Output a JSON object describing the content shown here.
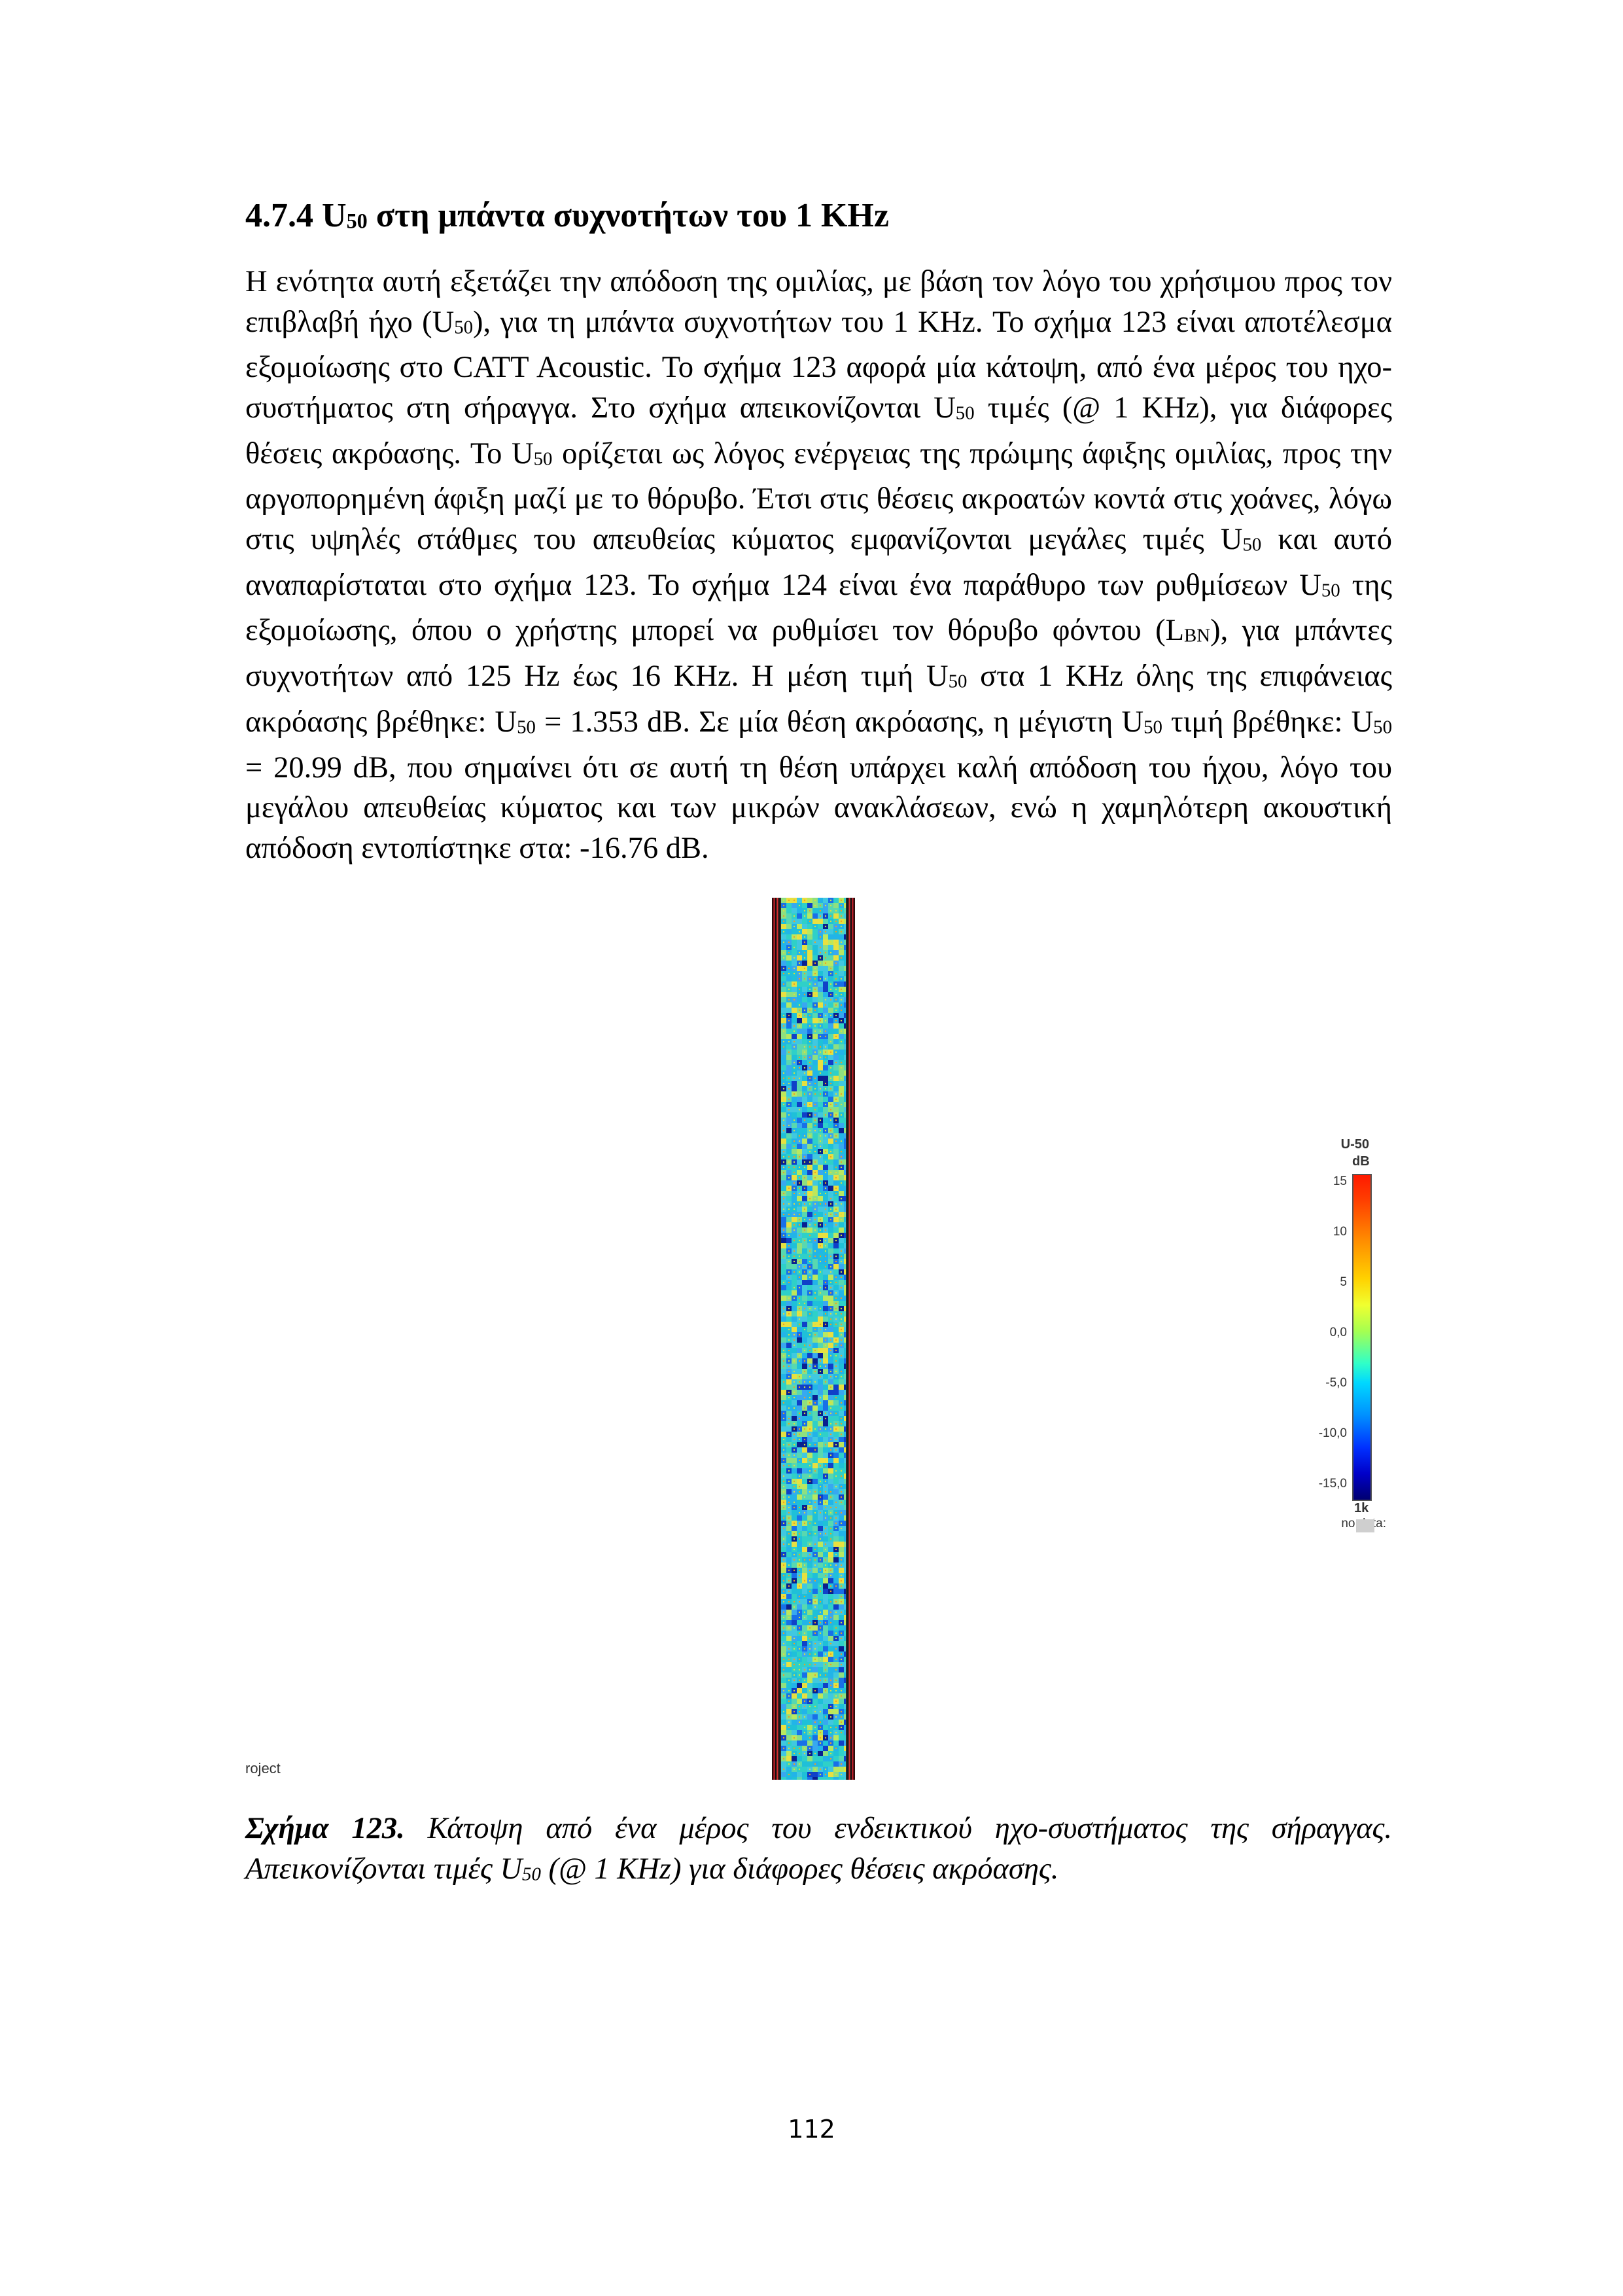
{
  "heading": {
    "number": "4.7.4 U",
    "sub": "50",
    "rest": " στη μπάντα συχνοτήτων του 1 KHz"
  },
  "paragraph": [
    "Η ενότητα αυτή εξετάζει την απόδοση της ομιλίας, με βάση τον λόγο του χρήσιμου προς τον επιβλαβή ήχο (U",
    "50",
    "), για τη μπάντα συχνοτήτων του 1 KHz. Το σχήμα 123 είναι αποτέλεσμα εξομοίωσης στο CATT Acoustic. Το σχήμα 123 αφορά μία κάτοψη, από ένα μέρος του ηχο-συστήματος στη σήραγγα. Στο σχήμα απεικονίζονται U",
    "50",
    " τιμές (@ 1 KHz), για διάφορες θέσεις ακρόασης. Το U",
    "50",
    " ορίζεται ως λόγος ενέργειας της πρώιμης άφιξης ομιλίας, προς την αργοπορημένη άφιξη μαζί με το θόρυβο. Έτσι στις θέσεις ακροατών κοντά στις χοάνες, λόγω στις υψηλές στάθμες του απευθείας κύματος εμφανίζονται μεγάλες τιμές U",
    "50",
    " και αυτό αναπαρίσταται στο σχήμα 123. Το σχήμα 124 είναι ένα παράθυρο των ρυθμίσεων U",
    "50",
    " της εξομοίωσης, όπου ο χρήστης μπορεί να ρυθμίσει τον θόρυβο φόντου (L",
    "BN",
    "), για μπάντες συχνοτήτων από 125 Hz έως 16 KHz. Η μέση τιμή U",
    "50",
    " στα 1 KHz όλης της επιφάνειας ακρόασης βρέθηκε: U",
    "50",
    " = 1.353 dB. Σε μία θέση ακρόασης, η μέγιστη U",
    "50",
    " τιμή βρέθηκε: U",
    "50",
    " = 20.99 dB, που σημαίνει ότι σε αυτή τη θέση υπάρχει καλή απόδοση του ήχου, λόγο του μεγάλου απευθείας κύματος και των μικρών ανακλάσεων, ενώ η χαμηλότερη ακουστική απόδοση εντοπίστηκε στα: -16.76 dB."
  ],
  "figure": {
    "corner_text": "roject",
    "legend": {
      "title": "U-50",
      "unit": "dB",
      "ticks": [
        "15",
        "10",
        "5",
        "0,0",
        "-5,0",
        "-10,0",
        "-15,0"
      ],
      "band": "1k",
      "no_data": "no data:"
    }
  },
  "caption": {
    "label": "Σχήμα 123.",
    "text1": " Κάτοψη από ένα μέρος του ενδεικτικού ηχο-συστήματος της σήραγγας. Απεικονίζονται τιμές U",
    "sub": "50",
    "text2": " (@ 1 KHz) για διάφορες θέσεις ακρόασης."
  },
  "page_number": "112"
}
